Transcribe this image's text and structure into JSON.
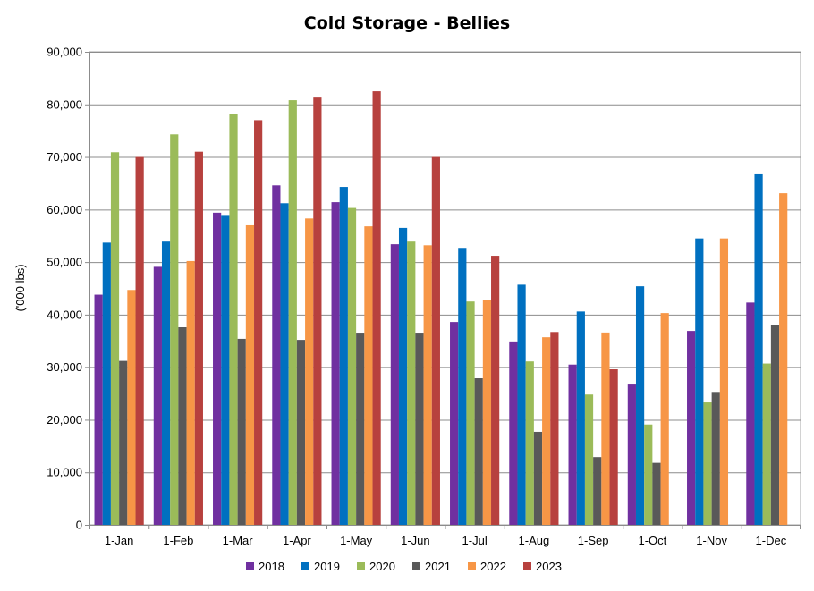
{
  "chart_data": {
    "type": "bar",
    "title": "Cold Storage - Bellies",
    "xlabel": "",
    "ylabel": "('000 lbs)",
    "ylim": [
      0,
      90000
    ],
    "yticks": [
      "0",
      "10,000",
      "20,000",
      "30,000",
      "40,000",
      "50,000",
      "60,000",
      "70,000",
      "80,000",
      "90,000"
    ],
    "ytick_values": [
      0,
      10000,
      20000,
      30000,
      40000,
      50000,
      60000,
      70000,
      80000,
      90000
    ],
    "grid": true,
    "legend_position": "bottom",
    "categories": [
      "1-Jan",
      "1-Feb",
      "1-Mar",
      "1-Apr",
      "1-May",
      "1-Jun",
      "1-Jul",
      "1-Aug",
      "1-Sep",
      "1-Oct",
      "1-Nov",
      "1-Dec"
    ],
    "series": [
      {
        "name": "2018",
        "color": "#7030A0",
        "values": [
          43800,
          49100,
          59400,
          64600,
          61400,
          53400,
          38600,
          34900,
          30500,
          26700,
          36900,
          42300
        ]
      },
      {
        "name": "2019",
        "color": "#0070C0",
        "values": [
          53700,
          53900,
          58800,
          61200,
          64300,
          56500,
          52700,
          45700,
          40600,
          45400,
          54500,
          66700
        ]
      },
      {
        "name": "2020",
        "color": "#9BBB59",
        "values": [
          70900,
          74300,
          78200,
          80800,
          60300,
          53900,
          42500,
          31100,
          24800,
          19100,
          23300,
          30700
        ]
      },
      {
        "name": "2021",
        "color": "#595959",
        "values": [
          31200,
          37600,
          35400,
          35200,
          36400,
          36400,
          27900,
          17700,
          12900,
          11800,
          25300,
          38100
        ]
      },
      {
        "name": "2022",
        "color": "#F79646",
        "values": [
          44700,
          50200,
          57000,
          58300,
          56800,
          53200,
          42800,
          35700,
          36600,
          40300,
          54500,
          63100
        ]
      },
      {
        "name": "2023",
        "color": "#B7413E",
        "values": [
          70000,
          71000,
          77000,
          81300,
          82500,
          70000,
          51200,
          36700,
          29600,
          null,
          null,
          null
        ]
      }
    ]
  }
}
